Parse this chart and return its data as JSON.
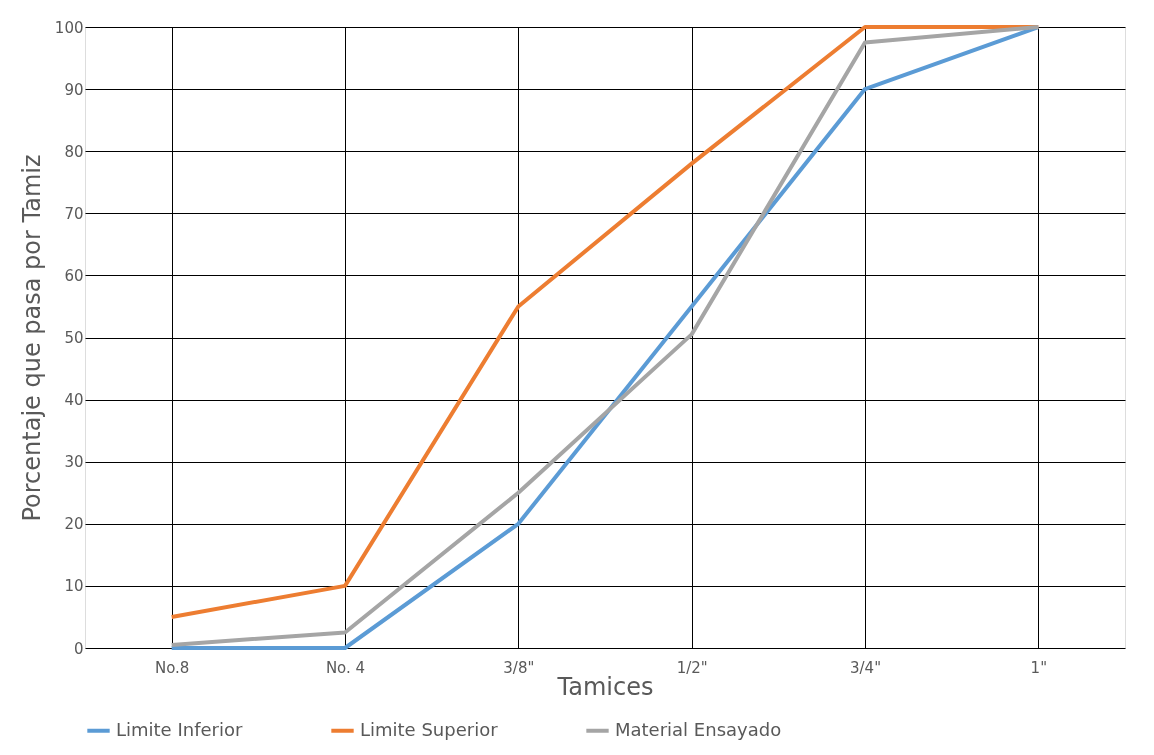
{
  "chart_data": {
    "type": "line",
    "xlabel": "Tamices",
    "ylabel": "Porcentaje que pasa por Tamiz",
    "categories": [
      "No.8",
      "No. 4",
      "3/8\"",
      "1/2\"",
      "3/4\"",
      "1\""
    ],
    "series": [
      {
        "name": "Limite Inferior",
        "color": "#5b9bd5",
        "values": [
          0,
          0,
          20,
          55,
          90,
          100
        ]
      },
      {
        "name": "Limite Superior",
        "color": "#ed7d31",
        "values": [
          5,
          10,
          55,
          78,
          100,
          100
        ]
      },
      {
        "name": "Material Ensayado",
        "color": "#a5a5a5",
        "values": [
          0.5,
          2.5,
          25,
          50.5,
          97.5,
          100
        ]
      }
    ],
    "ylim": [
      0,
      100
    ],
    "yticks": [
      0,
      10,
      20,
      30,
      40,
      50,
      60,
      70,
      80,
      90,
      100
    ],
    "grid": true,
    "legend": "bottom",
    "marker": "none",
    "line_style": "solid"
  }
}
